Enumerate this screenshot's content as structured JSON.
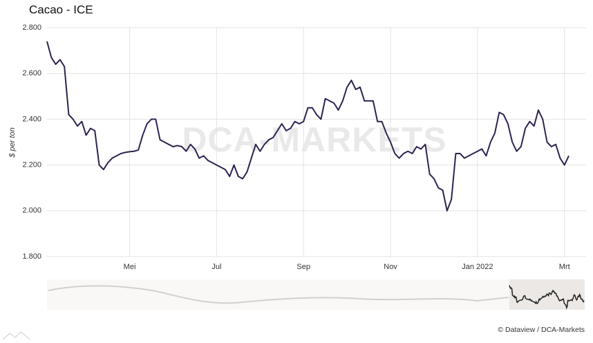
{
  "chart_data": {
    "type": "line",
    "title": "Cacao - ICE",
    "y_label": "$ per ton",
    "credit": "© Dataview / DCA-Markets",
    "watermark": "DCA-MARKETS",
    "categories": [
      null,
      null,
      null,
      null,
      null,
      null,
      null,
      null,
      null,
      null,
      null,
      null,
      null,
      null,
      null,
      null,
      null,
      null,
      null,
      "Mei",
      null,
      null,
      null,
      null,
      null,
      null,
      null,
      null,
      null,
      null,
      null,
      null,
      null,
      null,
      null,
      null,
      null,
      null,
      null,
      "Jul",
      null,
      null,
      null,
      null,
      null,
      null,
      null,
      null,
      null,
      null,
      null,
      null,
      null,
      null,
      null,
      null,
      null,
      null,
      null,
      "Sep",
      null,
      null,
      null,
      null,
      null,
      null,
      null,
      null,
      null,
      null,
      null,
      null,
      null,
      null,
      null,
      null,
      null,
      null,
      null,
      "Nov",
      null,
      null,
      null,
      null,
      null,
      null,
      null,
      null,
      null,
      null,
      null,
      null,
      null,
      null,
      null,
      null,
      null,
      null,
      null,
      "Jan 2022",
      null,
      null,
      null,
      null,
      null,
      null,
      null,
      null,
      null,
      null,
      null,
      null,
      null,
      null,
      null,
      null,
      null,
      null,
      null,
      "Mrt",
      null
    ],
    "series": [
      {
        "color": "#2e2150",
        "values": [
          2740,
          2670,
          2640,
          2660,
          2630,
          2420,
          2400,
          2370,
          2390,
          2330,
          2360,
          2350,
          2200,
          2180,
          2210,
          2230,
          2240,
          2250,
          2255,
          2258,
          2260,
          2265,
          2330,
          2380,
          2400,
          2400,
          2310,
          2300,
          2290,
          2280,
          2285,
          2280,
          2260,
          2290,
          2270,
          2230,
          2240,
          2220,
          2210,
          2200,
          2190,
          2180,
          2150,
          2200,
          2150,
          2140,
          2170,
          2230,
          2290,
          2260,
          2290,
          2310,
          2320,
          2350,
          2380,
          2350,
          2360,
          2390,
          2380,
          2390,
          2450,
          2450,
          2420,
          2400,
          2490,
          2480,
          2470,
          2440,
          2480,
          2540,
          2570,
          2530,
          2540,
          2480,
          2480,
          2480,
          2390,
          2390,
          2340,
          2300,
          2250,
          2230,
          2250,
          2260,
          2250,
          2280,
          2270,
          2290,
          2160,
          2140,
          2100,
          2090,
          2000,
          2050,
          2250,
          2250,
          2230,
          2240,
          2250,
          2260,
          2270,
          2240,
          2300,
          2340,
          2430,
          2420,
          2380,
          2300,
          2260,
          2280,
          2360,
          2390,
          2370,
          2440,
          2400,
          2300,
          2280,
          2290,
          2230,
          2200,
          2240
        ]
      }
    ],
    "ylim": [
      1800,
      2800
    ],
    "yticks": [
      {
        "value": 1800,
        "label": "1.800"
      },
      {
        "value": 2000,
        "label": "2.000"
      },
      {
        "value": 2200,
        "label": "2.200"
      },
      {
        "value": 2400,
        "label": "2.400"
      },
      {
        "value": 2600,
        "label": "2.600"
      },
      {
        "value": 2800,
        "label": "2.800"
      }
    ],
    "grid": true
  }
}
